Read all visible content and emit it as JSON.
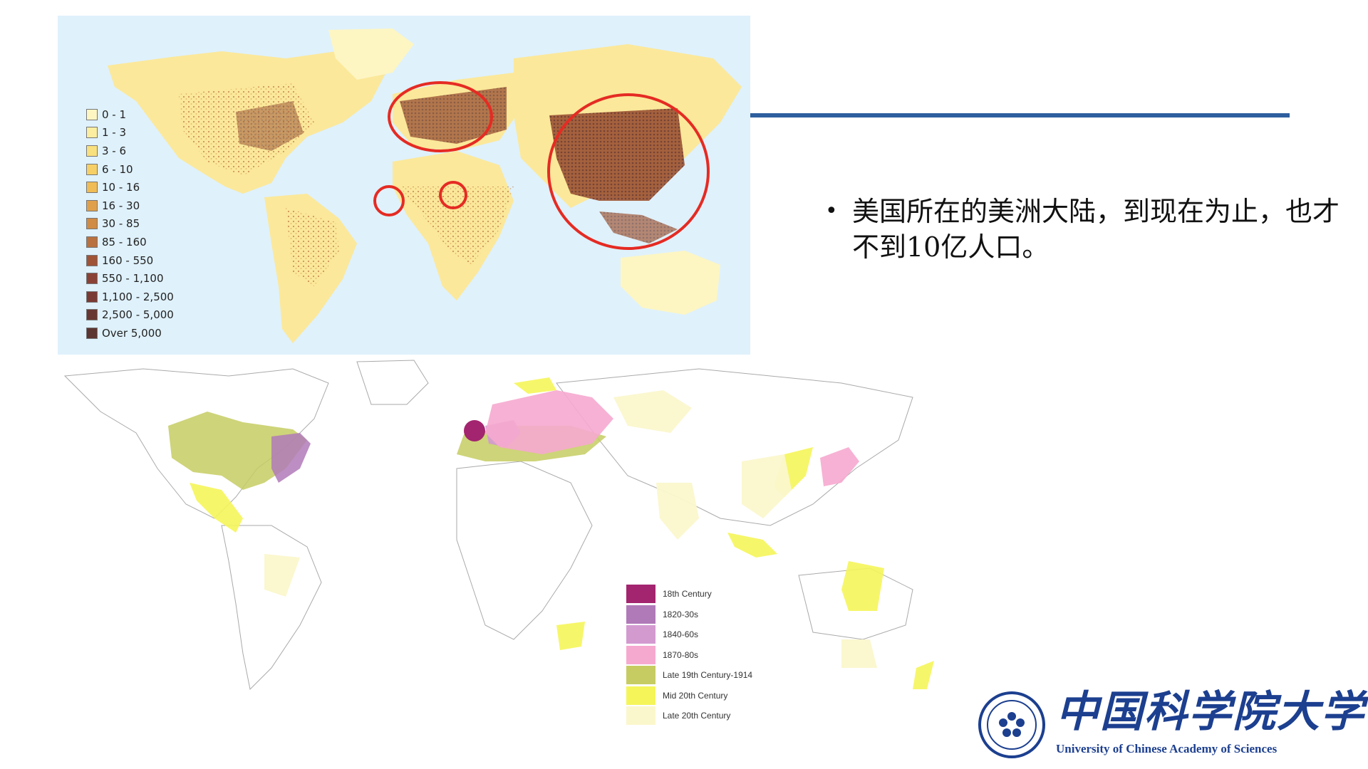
{
  "top_map": {
    "legend": [
      {
        "label": "0 - 1",
        "color": "#fdf6c3"
      },
      {
        "label": "1 - 3",
        "color": "#fbeea0"
      },
      {
        "label": "3 - 6",
        "color": "#f8e07e"
      },
      {
        "label": "6 - 10",
        "color": "#f6d066"
      },
      {
        "label": "10 - 16",
        "color": "#f0bc55"
      },
      {
        "label": "16 - 30",
        "color": "#e0a04a"
      },
      {
        "label": "30 - 85",
        "color": "#d08b45"
      },
      {
        "label": "85 - 160",
        "color": "#b8713f"
      },
      {
        "label": "160 - 550",
        "color": "#9f5438"
      },
      {
        "label": "550 - 1,100",
        "color": "#8b4236"
      },
      {
        "label": "1,100 - 2,500",
        "color": "#7a3a34"
      },
      {
        "label": "2,500 - 5,000",
        "color": "#693731"
      },
      {
        "label": "Over 5,000",
        "color": "#5c3430"
      }
    ],
    "highlight_circle_color": "#e52b23",
    "ocean_color": "#dff1fb",
    "land_color": "#fbe89a"
  },
  "bullet": {
    "text": "美国所在的美洲大陆，到现在为止，也才不到10亿人口。"
  },
  "bottom_map": {
    "legend": [
      {
        "label": "18th Century",
        "color": "#a3256f"
      },
      {
        "label": "1820-30s",
        "color": "#b07ab8"
      },
      {
        "label": "1840-60s",
        "color": "#d39ad0"
      },
      {
        "label": "1870-80s",
        "color": "#f6a9cf"
      },
      {
        "label": "Late 19th Century-1914",
        "color": "#c6cc62"
      },
      {
        "label": "Mid 20th Century",
        "color": "#f5f55a"
      },
      {
        "label": "Late 20th Century",
        "color": "#fbf7cc"
      }
    ]
  },
  "logo": {
    "chinese_name": "中国科学院大学",
    "english_name": "University of  Chinese Academy of Sciences",
    "brand_color": "#1c3f8f"
  },
  "accent_rule_color": "#2e5f9e"
}
